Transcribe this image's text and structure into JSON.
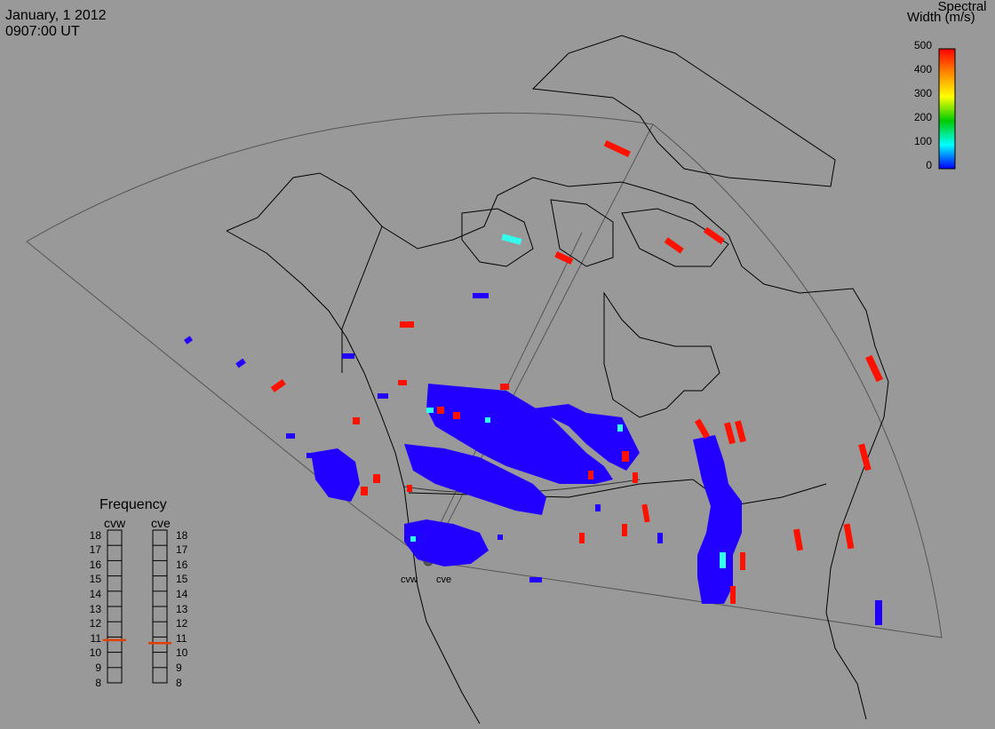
{
  "header": {
    "date": "January, 1 2012",
    "time": "0907:00 UT"
  },
  "colorbar": {
    "title_line1": "Spectral",
    "title_line2": "Width (m/s)",
    "ticks": [
      "500",
      "400",
      "300",
      "200",
      "100",
      "0"
    ],
    "gradient": [
      "#ff0000",
      "#ff8800",
      "#ffff00",
      "#00cc00",
      "#00ffff",
      "#0000ff"
    ]
  },
  "frequency_panel": {
    "title": "Frequency",
    "radars": [
      "cvw",
      "cve"
    ],
    "levels": [
      "18",
      "17",
      "16",
      "15",
      "14",
      "13",
      "12",
      "11",
      "10",
      "9",
      "8"
    ],
    "cvw_value": 10.8,
    "cve_value": 10.6
  },
  "sites": {
    "cvw": "cvw",
    "cve": "cve"
  },
  "colors": {
    "background": "#999999",
    "coast": "#000000",
    "low_width": "#2200ff",
    "high_width": "#ff1100",
    "mid_width": "#33ffee",
    "freq_marker": "#e04000"
  }
}
